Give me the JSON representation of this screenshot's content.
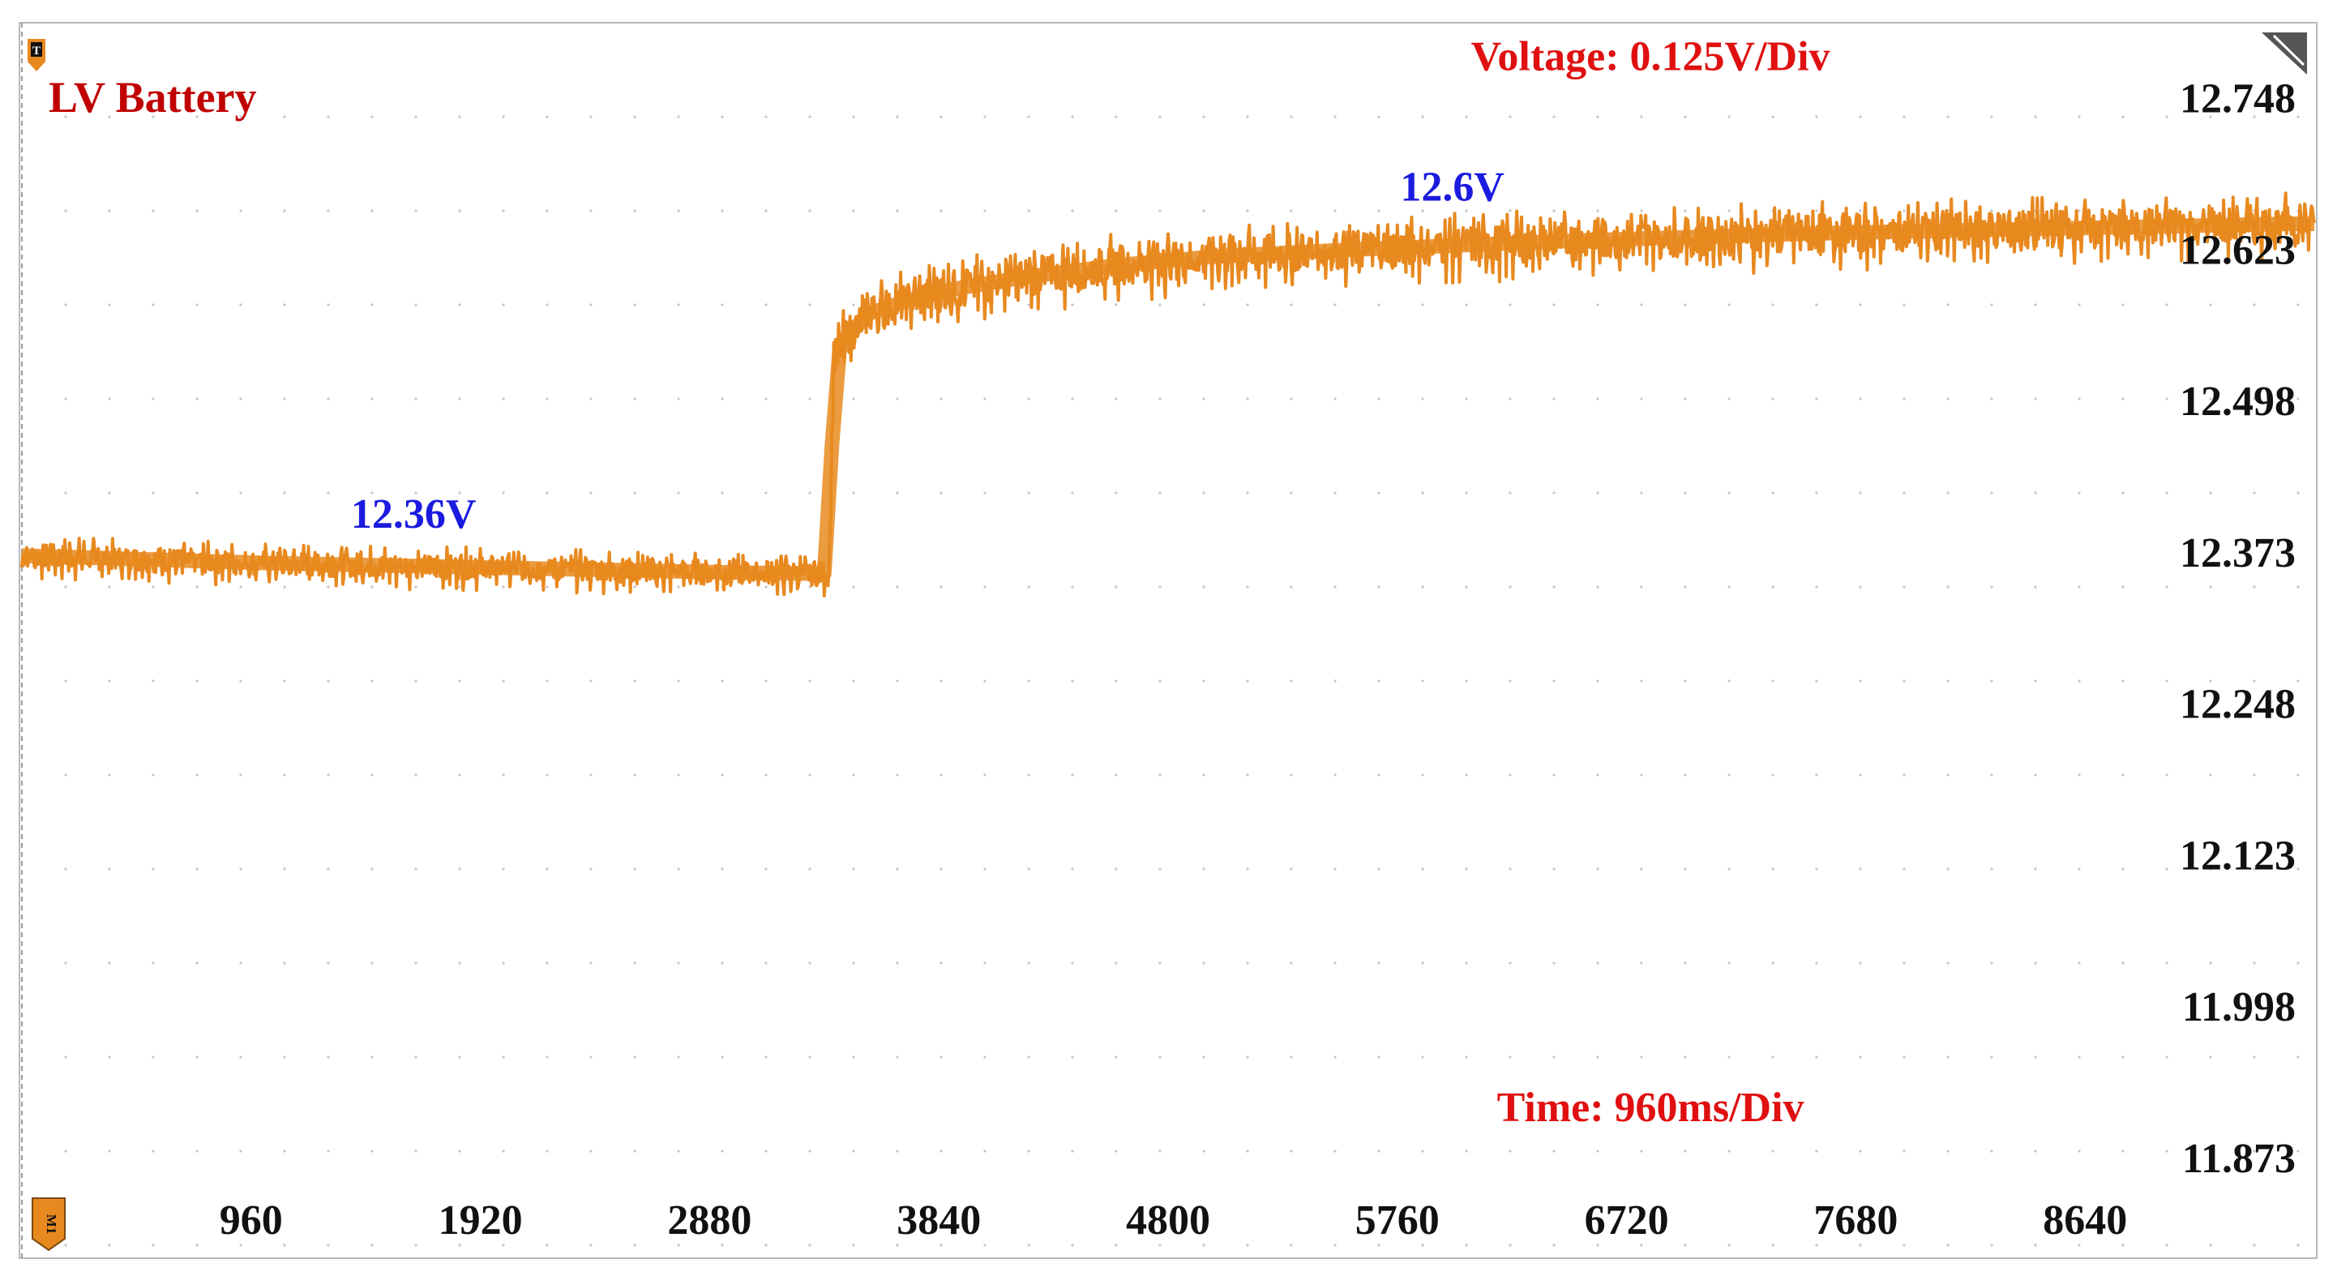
{
  "chart_data": {
    "type": "line",
    "title": "LV Battery",
    "xlabel": "",
    "ylabel": "",
    "x_units": "ms",
    "y_units": "V",
    "x_ticks": [
      960,
      1920,
      2880,
      3840,
      4800,
      5760,
      6720,
      7680,
      8640
    ],
    "y_ticks": [
      "12.748",
      "12.623",
      "12.498",
      "12.373",
      "12.248",
      "12.123",
      "11.998",
      "11.873"
    ],
    "xlim": [
      0,
      9600
    ],
    "ylim": [
      11.79,
      12.81
    ],
    "grid": true,
    "series": [
      {
        "name": "LV Battery",
        "color": "#E8891F",
        "x": [
          0,
          500,
          1000,
          1500,
          2000,
          2500,
          3000,
          3380,
          3400,
          3450,
          3550,
          3700,
          3900,
          4200,
          4600,
          5000,
          5500,
          6000,
          6500,
          7000,
          7500,
          8000,
          8500,
          9000,
          9500
        ],
        "y": [
          12.37,
          12.367,
          12.364,
          12.362,
          12.36,
          12.358,
          12.356,
          12.355,
          12.53,
          12.55,
          12.57,
          12.58,
          12.59,
          12.6,
          12.61,
          12.617,
          12.622,
          12.626,
          12.63,
          12.633,
          12.636,
          12.638,
          12.64,
          12.642,
          12.644
        ]
      }
    ],
    "annotations": [
      {
        "text": "12.36V",
        "x": 1640,
        "y": 12.393,
        "color": "#1B1BE0"
      },
      {
        "text": "12.6V",
        "x": 5990,
        "y": 12.663,
        "color": "#1B1BE0"
      },
      {
        "text": "Voltage: 0.125V/Div",
        "x": 6820,
        "y": 12.771,
        "color": "#E01010"
      },
      {
        "text": "Time: 960ms/Div",
        "x": 6820,
        "y": 11.903,
        "color": "#E01010"
      }
    ],
    "markers": {
      "trigger": "T",
      "channel": "M1"
    }
  }
}
